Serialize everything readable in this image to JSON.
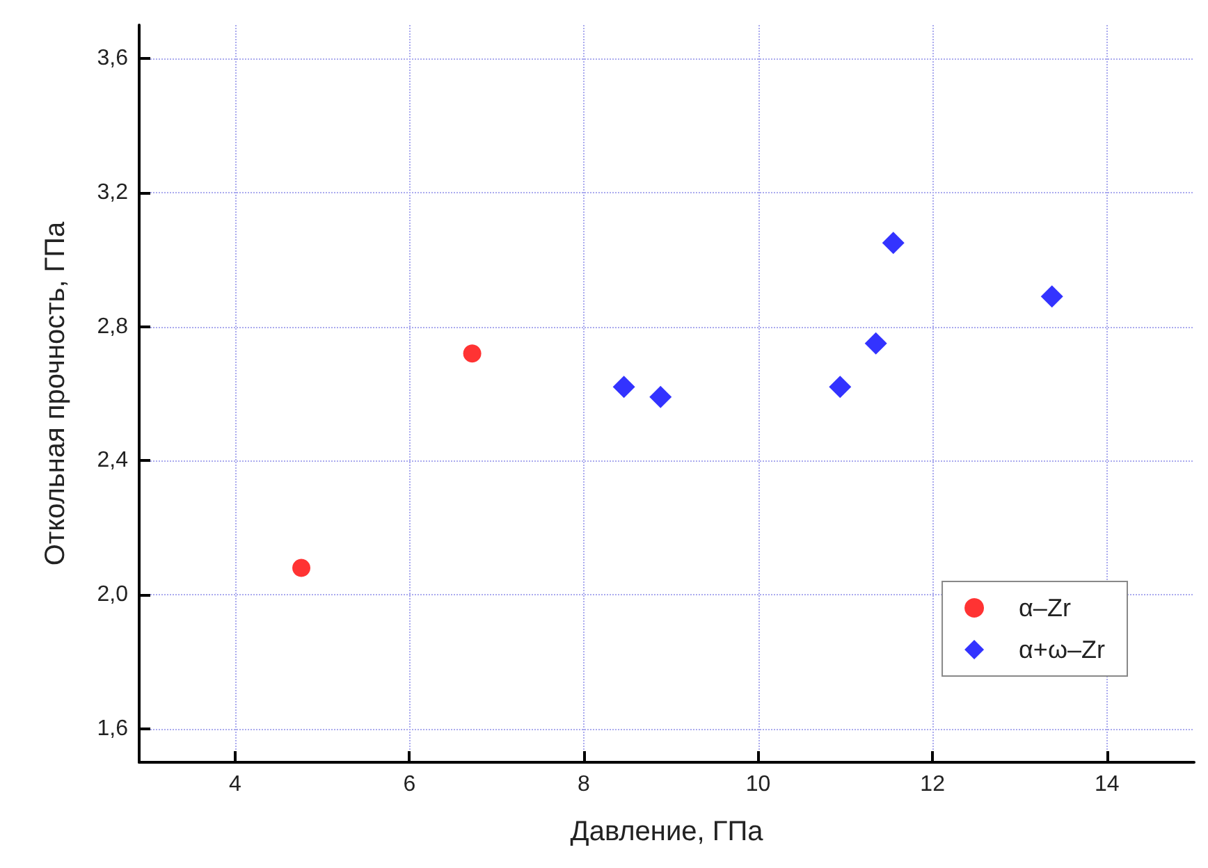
{
  "chart_data": {
    "type": "scatter",
    "xlabel": "Давление, ГПа",
    "ylabel": "Откольная прочность, ГПа",
    "xlim": [
      2.9,
      15
    ],
    "xticks": [
      4,
      6,
      8,
      10,
      12,
      14
    ],
    "ylim": [
      1.5,
      3.7
    ],
    "yticks": [
      {
        "value": 1.6,
        "label": "1,6"
      },
      {
        "value": 2.0,
        "label": "2,0"
      },
      {
        "value": 2.4,
        "label": "2,4"
      },
      {
        "value": 2.8,
        "label": "2,8"
      },
      {
        "value": 3.2,
        "label": "3,2"
      },
      {
        "value": 3.6,
        "label": "3,6"
      }
    ],
    "grid": true,
    "legend": "bottom right",
    "series": [
      {
        "name": "α–Zr",
        "color": "#ff0000",
        "marker": "circle",
        "x": [
          4.76,
          6.72
        ],
        "values": [
          2.08,
          2.72
        ]
      },
      {
        "name": "α+ω–Zr",
        "color": "#0000ff",
        "marker": "diamond",
        "x": [
          8.46,
          8.88,
          10.94,
          11.35,
          11.55,
          13.37
        ],
        "values": [
          2.62,
          2.59,
          2.62,
          2.75,
          3.05,
          2.89
        ]
      }
    ]
  }
}
